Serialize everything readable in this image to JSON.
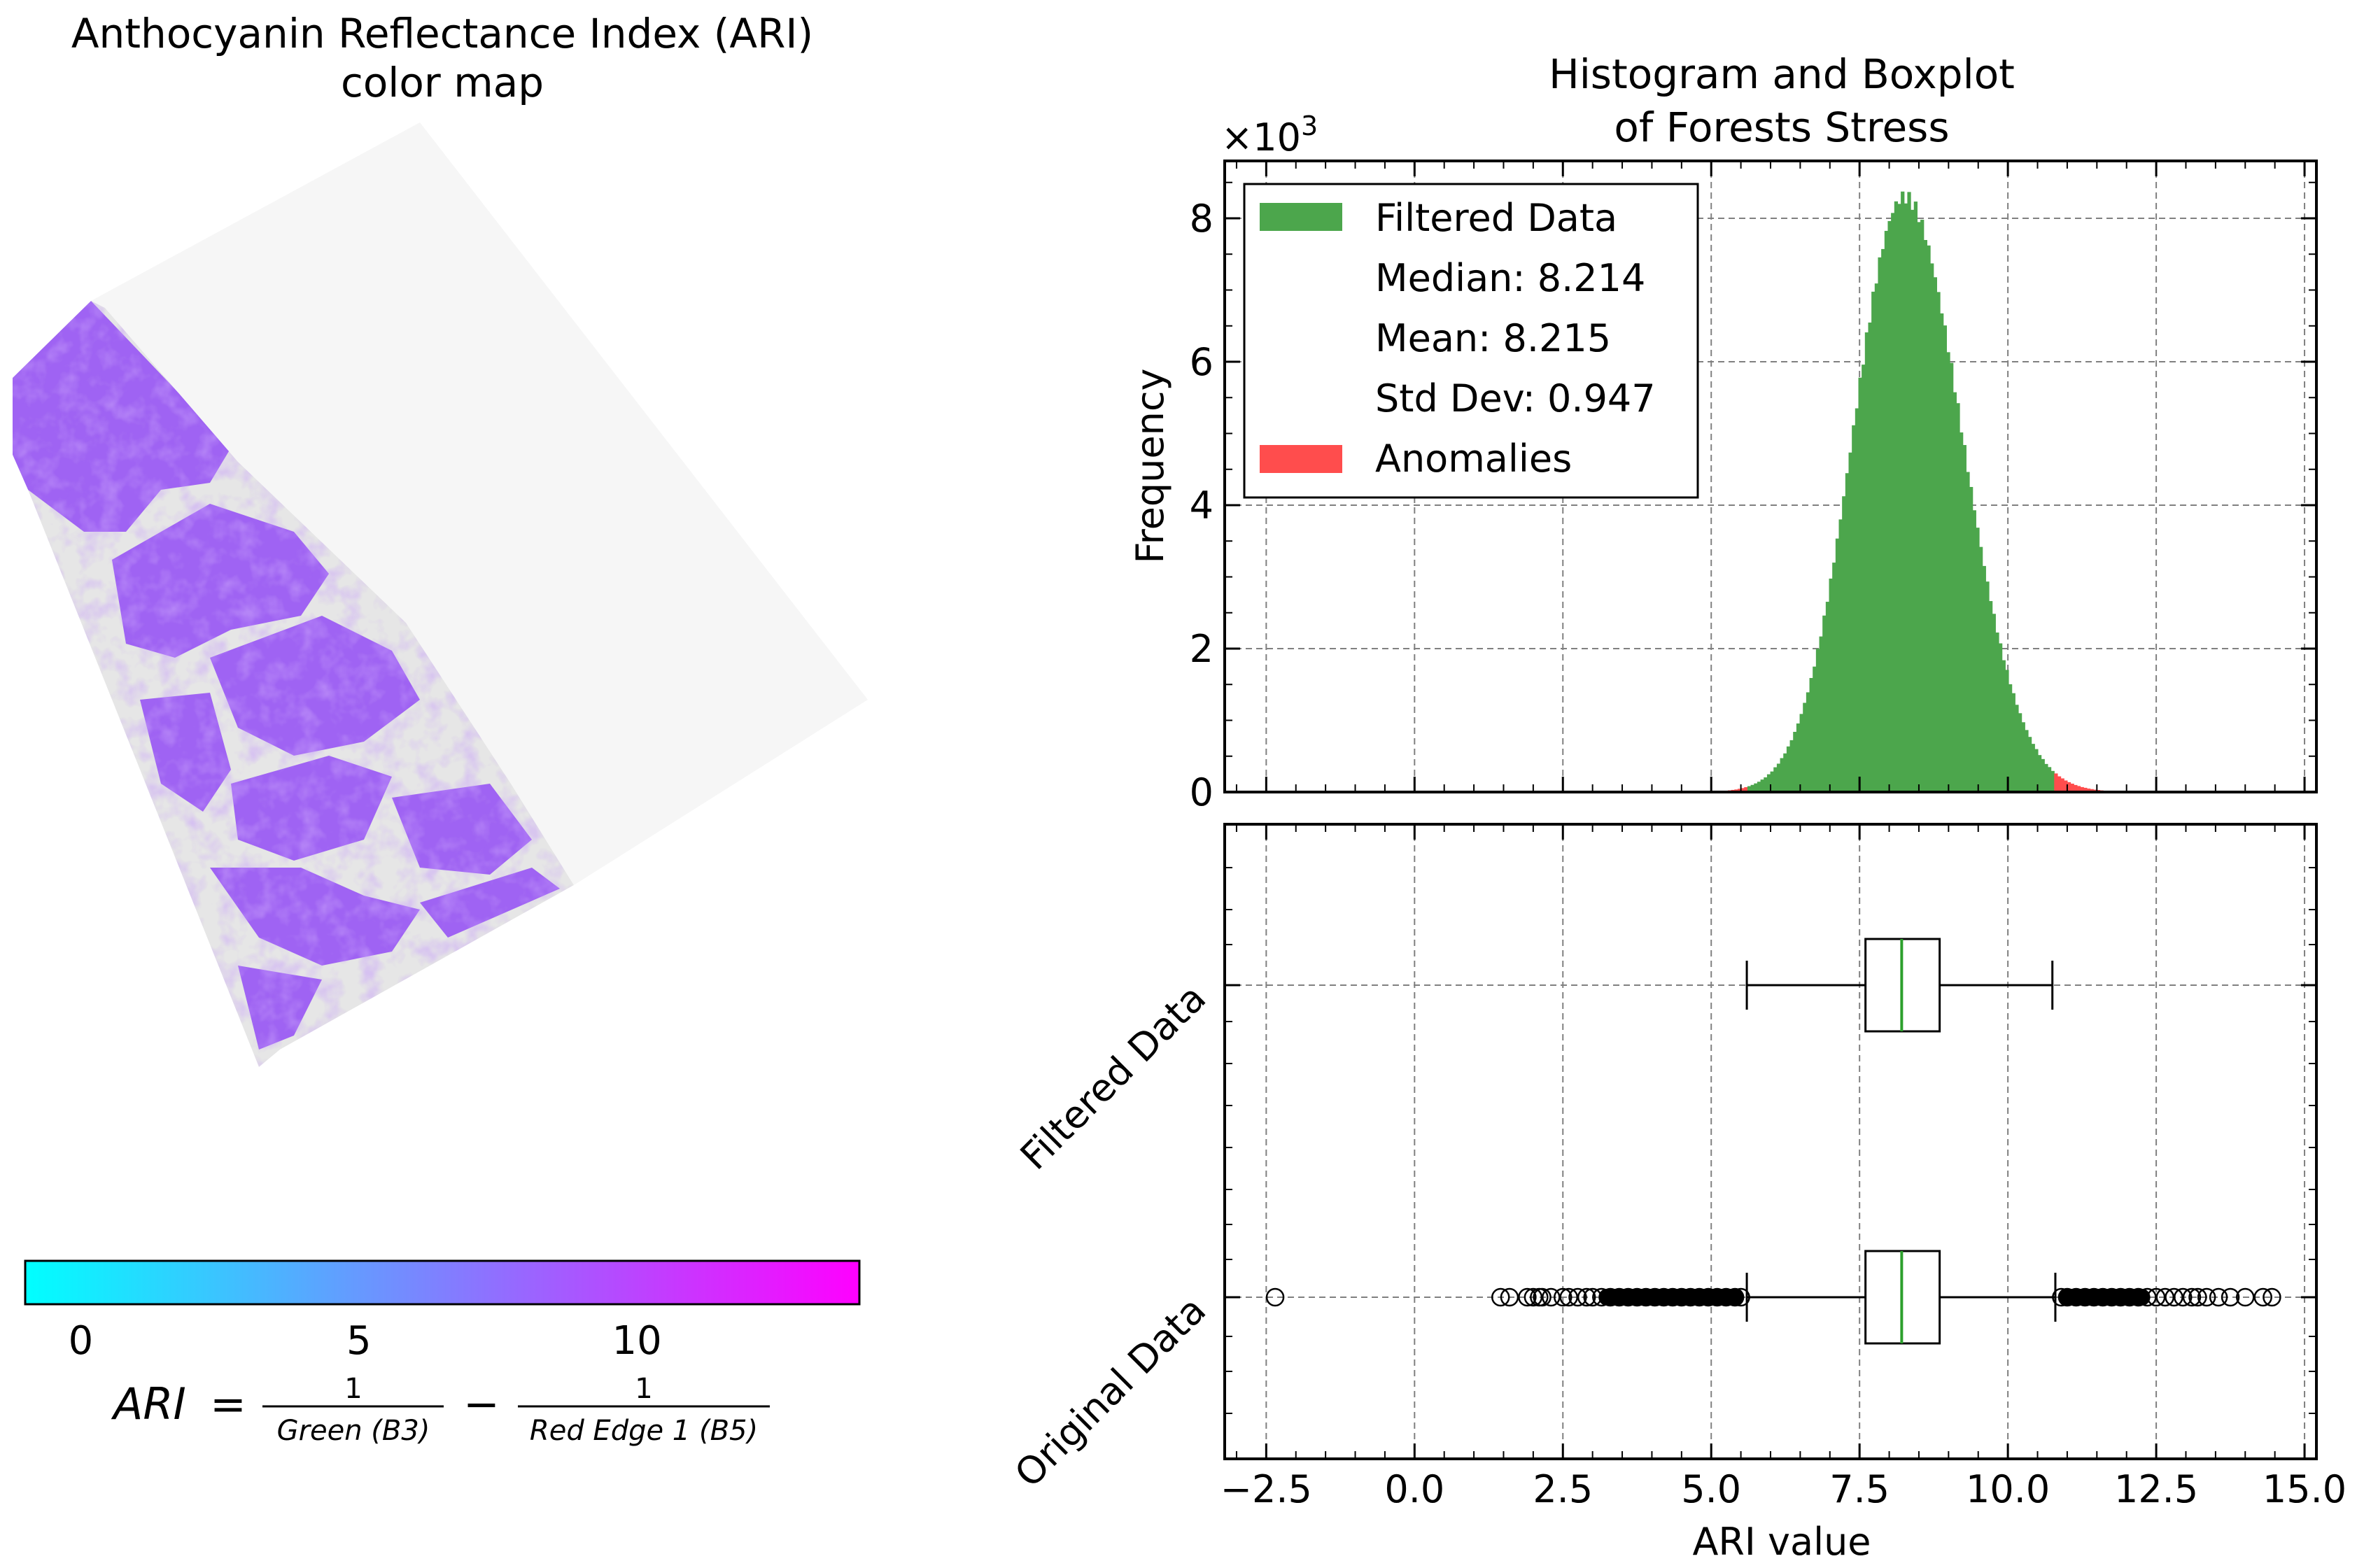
{
  "colors": {
    "filtered": "#4ca64c",
    "anomalies": "#ff4d4d",
    "median_line": "#2ca02c",
    "colormap_low": "#00ffff",
    "colormap_high": "#ff00ff",
    "forest_fill": "#9b5cf3",
    "background_land": "#e8e8e8"
  },
  "left_panel": {
    "title_line1": "Anthocyanin Reflectance Index (ARI)",
    "title_line2": "color map",
    "colorbar": {
      "range": [
        -1,
        14
      ],
      "ticks": [
        "0",
        "5",
        "10"
      ],
      "tick_values": [
        0,
        5,
        10
      ]
    },
    "formula": {
      "lhs": "ARI",
      "eq": "=",
      "minus": "−",
      "num1": "1",
      "den1": "Green (B3)",
      "num2": "1",
      "den2": "Red Edge 1 (B5)"
    }
  },
  "chart_data": [
    {
      "type": "bar",
      "subtype": "histogram",
      "title": "Histogram and Boxplot\nof Forests Stress",
      "title_line1": "Histogram and Boxplot",
      "title_line2": "of Forests Stress",
      "xlabel": "",
      "ylabel": "Frequency",
      "y_multiplier": "×10³",
      "y_mult_base": "×10",
      "y_mult_exp": "3",
      "xlim": [
        -3.2,
        15.2
      ],
      "ylim": [
        0,
        8.8
      ],
      "yticks": [
        "0",
        "2",
        "4",
        "6",
        "8"
      ],
      "ytick_values": [
        0,
        2,
        4,
        6,
        8
      ],
      "grid": true,
      "legend_placement": "top-left",
      "legend": [
        "Filtered Data",
        "Median: 8.214",
        "Mean: 8.215",
        "Std Dev: 0.947",
        "Anomalies"
      ],
      "series": [
        {
          "name": "Filtered Data",
          "lower": 5.6,
          "upper": 10.8
        },
        {
          "name": "Anomalies",
          "ranges": [
            [
              4.4,
              5.6
            ],
            [
              10.8,
              11.7
            ]
          ]
        }
      ],
      "stats": {
        "median": 8.214,
        "mean": 8.215,
        "std_dev": 0.947,
        "peak_x": 8.25,
        "peak_count_thousands": 8.3
      }
    },
    {
      "type": "boxplot",
      "xlabel": "ARI value",
      "xlim": [
        -3.2,
        15.2
      ],
      "xticks": [
        "−2.5",
        "0.0",
        "2.5",
        "5.0",
        "7.5",
        "10.0",
        "12.5",
        "15.0"
      ],
      "xtick_values": [
        -2.5,
        0,
        2.5,
        5,
        7.5,
        10,
        12.5,
        15
      ],
      "grid": true,
      "categories": [
        "Filtered Data",
        "Original Data"
      ],
      "series": [
        {
          "name": "Filtered Data",
          "whisker_low": 5.6,
          "q1": 7.6,
          "median": 8.21,
          "q3": 8.85,
          "whisker_high": 10.75,
          "outliers": []
        },
        {
          "name": "Original Data",
          "whisker_low": 5.6,
          "q1": 7.6,
          "median": 8.21,
          "q3": 8.85,
          "whisker_high": 10.8,
          "outliers": [
            -2.35,
            1.45,
            1.6,
            1.9,
            2.0,
            2.1,
            2.15,
            2.3,
            2.5,
            2.6,
            2.75,
            2.9,
            3.0,
            3.15,
            3.3,
            3.45,
            3.6,
            3.75,
            3.9,
            4.05,
            4.2,
            4.35,
            4.5,
            4.65,
            4.8,
            4.95,
            5.1,
            5.25,
            5.4,
            5.5,
            10.9,
            11.0,
            11.15,
            11.3,
            11.45,
            11.6,
            11.75,
            11.9,
            12.05,
            12.2,
            12.35,
            12.5,
            12.65,
            12.8,
            12.95,
            13.1,
            13.2,
            13.35,
            13.55,
            13.75,
            14.0,
            14.3,
            14.45
          ]
        }
      ]
    }
  ]
}
